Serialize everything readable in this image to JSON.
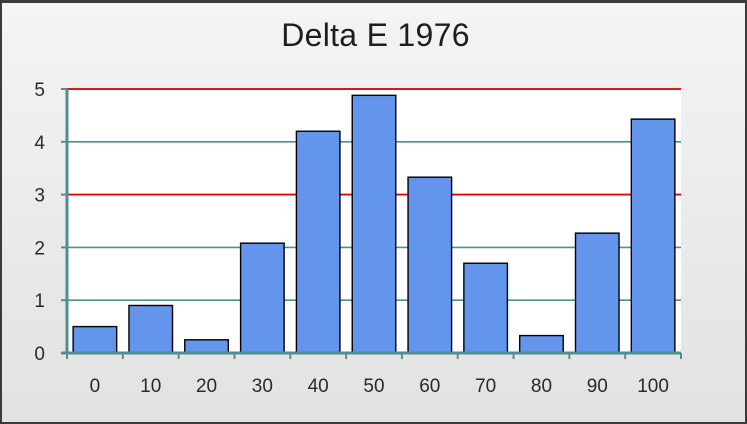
{
  "chart_data": {
    "type": "bar",
    "title": "Delta E 1976",
    "xlabel": "",
    "ylabel": "",
    "categories": [
      "0",
      "10",
      "20",
      "30",
      "40",
      "50",
      "60",
      "70",
      "80",
      "90",
      "100"
    ],
    "values": [
      0.5,
      0.9,
      0.25,
      2.08,
      4.2,
      4.88,
      3.33,
      1.7,
      0.33,
      2.27,
      4.43
    ],
    "ylim": [
      0,
      5
    ],
    "yticks": [
      "0",
      "1",
      "2",
      "3",
      "4",
      "5"
    ],
    "grid": true,
    "reference_lines": [
      3,
      5
    ],
    "colors": {
      "bar_fill": "#6495ed",
      "bar_stroke": "#000000",
      "gridline": "#4e8f8f",
      "reference_line": "#e00000",
      "axis": "#4e8f8f",
      "plot_background": "#ffffff"
    }
  }
}
